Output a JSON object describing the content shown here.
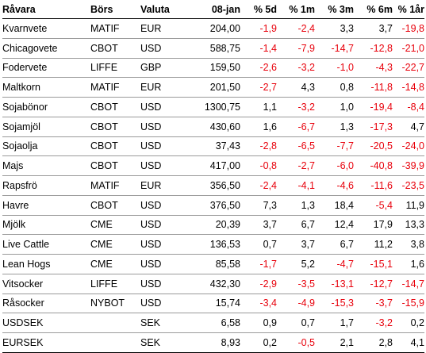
{
  "table": {
    "headers": [
      "Råvara",
      "Börs",
      "Valuta",
      "08-jan",
      "% 5d",
      "% 1m",
      "% 3m",
      "% 6m",
      "% 1år"
    ],
    "negative_color": "#e8000b",
    "rows": [
      [
        "Kvarnvete",
        "MATIF",
        "EUR",
        "204,00",
        "-1,9",
        "-2,4",
        "3,3",
        "3,7",
        "-19,8"
      ],
      [
        "Chicagovete",
        "CBOT",
        "USD",
        "588,75",
        "-1,4",
        "-7,9",
        "-14,7",
        "-12,8",
        "-21,0"
      ],
      [
        "Fodervete",
        "LIFFE",
        "GBP",
        "159,50",
        "-2,6",
        "-3,2",
        "-1,0",
        "-4,3",
        "-22,7"
      ],
      [
        "Maltkorn",
        "MATIF",
        "EUR",
        "201,50",
        "-2,7",
        "4,3",
        "0,8",
        "-11,8",
        "-14,8"
      ],
      [
        "Sojabönor",
        "CBOT",
        "USD",
        "1300,75",
        "1,1",
        "-3,2",
        "1,0",
        "-19,4",
        "-8,4"
      ],
      [
        "Sojamjöl",
        "CBOT",
        "USD",
        "430,60",
        "1,6",
        "-6,7",
        "1,3",
        "-17,3",
        "4,7"
      ],
      [
        "Sojaolja",
        "CBOT",
        "USD",
        "37,43",
        "-2,8",
        "-6,5",
        "-7,7",
        "-20,5",
        "-24,0"
      ],
      [
        "Majs",
        "CBOT",
        "USD",
        "417,00",
        "-0,8",
        "-2,7",
        "-6,0",
        "-40,8",
        "-39,9"
      ],
      [
        "Rapsfrö",
        "MATIF",
        "EUR",
        "356,50",
        "-2,4",
        "-4,1",
        "-4,6",
        "-11,6",
        "-23,5"
      ],
      [
        "Havre",
        "CBOT",
        "USD",
        "376,50",
        "7,3",
        "1,3",
        "18,4",
        "-5,4",
        "11,9"
      ],
      [
        "Mjölk",
        "CME",
        "USD",
        "20,39",
        "3,7",
        "6,7",
        "12,4",
        "17,9",
        "13,3"
      ],
      [
        "Live Cattle",
        "CME",
        "USD",
        "136,53",
        "0,7",
        "3,7",
        "6,7",
        "11,2",
        "3,8"
      ],
      [
        "Lean Hogs",
        "CME",
        "USD",
        "85,58",
        "-1,7",
        "5,2",
        "-4,7",
        "-15,1",
        "1,6"
      ],
      [
        "Vitsocker",
        "LIFFE",
        "USD",
        "432,30",
        "-2,9",
        "-3,5",
        "-13,1",
        "-12,7",
        "-14,7"
      ],
      [
        "Råsocker",
        "NYBOT",
        "USD",
        "15,74",
        "-3,4",
        "-4,9",
        "-15,3",
        "-3,7",
        "-15,9"
      ],
      [
        "USDSEK",
        "",
        "SEK",
        "6,58",
        "0,9",
        "0,7",
        "1,7",
        "-3,2",
        "0,2"
      ],
      [
        "EURSEK",
        "",
        "SEK",
        "8,93",
        "0,2",
        "-0,5",
        "2,1",
        "2,8",
        "4,1"
      ]
    ]
  }
}
